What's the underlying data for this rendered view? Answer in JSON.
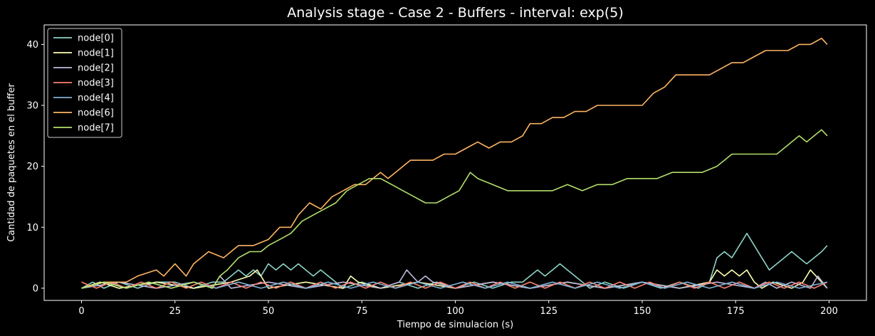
{
  "chart_data": {
    "type": "line",
    "title": "Analysis stage - Case 2 - Buffers - interval: exp(5)",
    "xlabel": "Tiempo de simulacion (s)",
    "ylabel": "Cantidad de paquetes en el buffer",
    "xlim": [
      -10,
      210
    ],
    "ylim": [
      -2,
      43.2
    ],
    "xticks": [
      0,
      25,
      50,
      75,
      100,
      125,
      150,
      175,
      200
    ],
    "yticks": [
      0,
      10,
      20,
      30,
      40
    ],
    "grid": false,
    "legend_position": "top-left",
    "series": [
      {
        "name": "node[0]",
        "color": "#8dd3c7",
        "x": [
          0,
          3,
          6,
          10,
          15,
          20,
          25,
          30,
          35,
          38,
          40,
          42,
          44,
          46,
          48,
          50,
          52,
          54,
          56,
          58,
          60,
          62,
          64,
          66,
          68,
          70,
          75,
          80,
          85,
          90,
          95,
          100,
          105,
          110,
          115,
          118,
          120,
          122,
          124,
          126,
          128,
          130,
          132,
          134,
          136,
          140,
          145,
          150,
          155,
          160,
          165,
          168,
          170,
          172,
          174,
          176,
          177,
          178,
          180,
          182,
          184,
          186,
          188,
          190,
          192,
          194,
          196,
          198,
          199.5
        ],
        "y": [
          0,
          1,
          0,
          1,
          0,
          1,
          1,
          0,
          1,
          1,
          2,
          3,
          2,
          3,
          2,
          4,
          3,
          4,
          3,
          4,
          3,
          2,
          3,
          2,
          1,
          0,
          1,
          0,
          1,
          0,
          1,
          0,
          1,
          0,
          1,
          1,
          2,
          3,
          2,
          3,
          4,
          3,
          2,
          1,
          0,
          1,
          0,
          1,
          0,
          1,
          0,
          1,
          5,
          6,
          5,
          7,
          8,
          9,
          7,
          5,
          3,
          4,
          5,
          6,
          5,
          4,
          5,
          6,
          7
        ]
      },
      {
        "name": "node[1]",
        "color": "#ffffb3",
        "x": [
          0,
          5,
          10,
          20,
          30,
          40,
          45,
          47,
          50,
          60,
          70,
          72,
          74,
          80,
          90,
          100,
          110,
          120,
          130,
          140,
          150,
          160,
          168,
          170,
          172,
          174,
          176,
          178,
          180,
          182,
          185,
          190,
          193,
          195,
          198,
          199.5
        ],
        "y": [
          0,
          1,
          0,
          1,
          0,
          1,
          2,
          3,
          0,
          1,
          0,
          2,
          1,
          0,
          1,
          0,
          1,
          0,
          1,
          0,
          1,
          0,
          1,
          3,
          2,
          3,
          2,
          3,
          1,
          0,
          1,
          0,
          1,
          3,
          1,
          0
        ]
      },
      {
        "name": "node[2]",
        "color": "#bebada",
        "x": [
          0,
          10,
          20,
          30,
          35,
          37,
          40,
          50,
          60,
          70,
          80,
          85,
          87,
          90,
          92,
          94,
          100,
          110,
          120,
          130,
          140,
          150,
          160,
          170,
          180,
          183,
          186,
          190,
          195,
          197,
          199.5
        ],
        "y": [
          0,
          1,
          0,
          1,
          0,
          2,
          0,
          1,
          0,
          1,
          0,
          1,
          3,
          1,
          2,
          1,
          0,
          1,
          0,
          1,
          0,
          1,
          0,
          1,
          0,
          1,
          0,
          1,
          0,
          2,
          0
        ]
      },
      {
        "name": "node[3]",
        "color": "#fb8072",
        "x": [
          0,
          4,
          8,
          12,
          16,
          20,
          24,
          28,
          32,
          36,
          40,
          44,
          48,
          52,
          56,
          60,
          64,
          68,
          72,
          76,
          80,
          84,
          88,
          92,
          96,
          100,
          104,
          108,
          112,
          116,
          120,
          124,
          128,
          132,
          136,
          140,
          144,
          148,
          152,
          156,
          160,
          164,
          168,
          172,
          176,
          180,
          184,
          188,
          192,
          196,
          199.5
        ],
        "y": [
          1,
          0,
          1,
          0,
          1,
          0,
          1,
          0,
          1,
          0,
          1,
          0,
          1,
          0,
          1,
          0,
          1,
          0,
          1,
          0,
          1,
          0,
          1,
          0,
          1,
          0,
          1,
          0,
          1,
          0,
          1,
          0,
          1,
          0,
          1,
          0,
          1,
          0,
          1,
          0,
          1,
          0,
          1,
          0,
          1,
          0,
          1,
          0,
          1,
          0,
          1
        ]
      },
      {
        "name": "node[4]",
        "color": "#80b1d3",
        "x": [
          0,
          6,
          12,
          18,
          24,
          30,
          36,
          42,
          48,
          54,
          60,
          66,
          72,
          78,
          84,
          90,
          96,
          102,
          108,
          114,
          120,
          126,
          132,
          138,
          144,
          150,
          156,
          162,
          168,
          174,
          180,
          186,
          192,
          199.5
        ],
        "y": [
          0,
          1,
          0,
          1,
          0,
          1,
          0,
          1,
          0,
          1,
          0,
          1,
          0,
          1,
          0,
          1,
          0,
          1,
          0,
          1,
          0,
          1,
          0,
          1,
          0,
          1,
          0,
          1,
          0,
          1,
          0,
          1,
          0,
          1
        ]
      },
      {
        "name": "node[6]",
        "color": "#fdb462",
        "x": [
          0,
          6,
          12,
          15,
          20,
          22,
          25,
          28,
          30,
          34,
          38,
          42,
          46,
          50,
          53,
          56,
          58,
          61,
          64,
          67,
          70,
          73,
          76,
          78,
          80,
          82,
          84,
          86,
          88,
          91,
          94,
          97,
          100,
          103,
          106,
          109,
          112,
          115,
          118,
          120,
          123,
          126,
          129,
          132,
          135,
          138,
          141,
          144,
          147,
          150,
          153,
          156,
          159,
          162,
          165,
          168,
          171,
          174,
          177,
          180,
          183,
          186,
          189,
          192,
          195,
          198,
          199.5
        ],
        "y": [
          0,
          1,
          1,
          2,
          3,
          2,
          4,
          2,
          4,
          6,
          5,
          7,
          7,
          8,
          10,
          10,
          12,
          14,
          13,
          15,
          16,
          17,
          17,
          18,
          19,
          18,
          19,
          20,
          21,
          21,
          21,
          22,
          22,
          23,
          24,
          23,
          24,
          24,
          25,
          27,
          27,
          28,
          28,
          29,
          29,
          30,
          30,
          30,
          30,
          30,
          32,
          33,
          35,
          35,
          35,
          35,
          36,
          37,
          37,
          38,
          39,
          39,
          39,
          40,
          40,
          41,
          40
        ]
      },
      {
        "name": "node[7]",
        "color": "#b3de69",
        "x": [
          0,
          6,
          12,
          18,
          24,
          30,
          35,
          37,
          39,
          42,
          45,
          48,
          50,
          53,
          56,
          59,
          62,
          65,
          68,
          71,
          74,
          77,
          80,
          83,
          86,
          89,
          92,
          95,
          98,
          101,
          103,
          104,
          106,
          110,
          114,
          118,
          122,
          126,
          130,
          134,
          138,
          142,
          146,
          150,
          154,
          158,
          162,
          166,
          170,
          172,
          174,
          178,
          182,
          186,
          188,
          190,
          192,
          194,
          196,
          198,
          199.5
        ],
        "y": [
          0,
          1,
          0,
          1,
          0,
          1,
          0,
          2,
          3,
          5,
          6,
          6,
          7,
          8,
          9,
          11,
          12,
          13,
          14,
          16,
          17,
          18,
          18,
          17,
          16,
          15,
          14,
          14,
          15,
          16,
          18,
          19,
          18,
          17,
          16,
          16,
          16,
          16,
          17,
          16,
          17,
          17,
          18,
          18,
          18,
          19,
          19,
          19,
          20,
          21,
          22,
          22,
          22,
          22,
          23,
          24,
          25,
          24,
          25,
          26,
          25
        ]
      }
    ]
  }
}
